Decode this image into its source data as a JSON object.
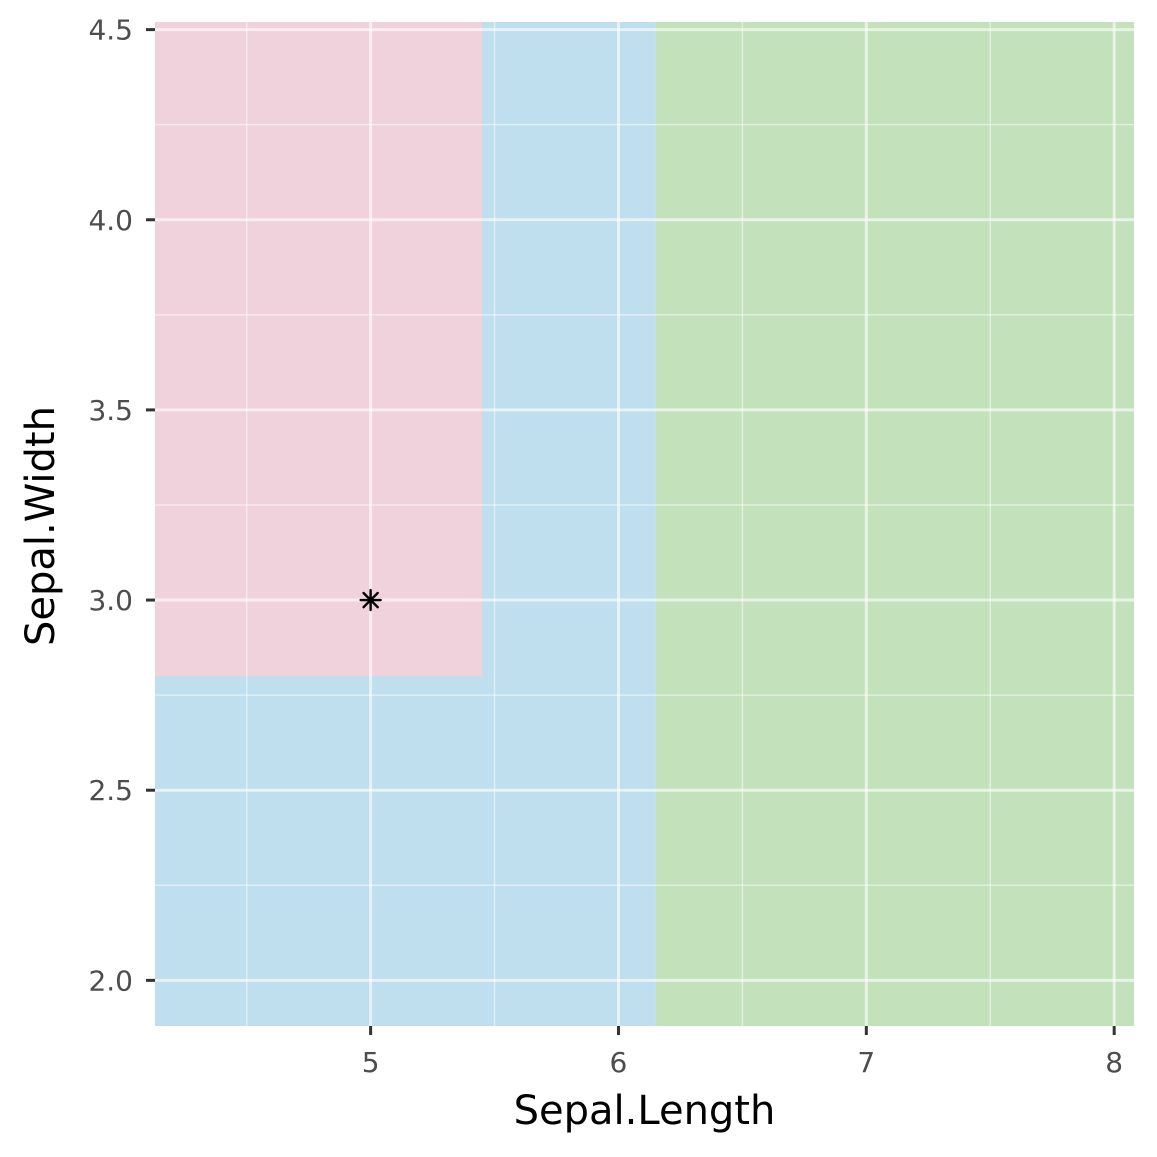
{
  "chart_data": {
    "type": "scatter",
    "subtype": "decision-region-plot",
    "xlabel": "Sepal.Length",
    "ylabel": "Sepal.Width",
    "xlim": [
      4.13,
      8.08
    ],
    "ylim": [
      1.88,
      4.52
    ],
    "x_ticks": [
      5,
      6,
      7,
      8
    ],
    "x_tick_labels": [
      "5",
      "6",
      "7",
      "8"
    ],
    "x_minor_ticks": [
      4.5,
      5.5,
      6.5,
      7.5
    ],
    "y_ticks": [
      2.0,
      2.5,
      3.0,
      3.5,
      4.0,
      4.5
    ],
    "y_tick_labels": [
      "2.0",
      "2.5",
      "3.0",
      "3.5",
      "4.0",
      "4.5"
    ],
    "y_minor_ticks": [
      2.25,
      2.75,
      3.25,
      3.75,
      4.25
    ],
    "grid": true,
    "legend": "none",
    "regions": [
      {
        "x0": 4.13,
        "x1": 6.15,
        "y0": 1.88,
        "y1": 4.52,
        "color": "#bfdeee"
      },
      {
        "x0": 4.13,
        "x1": 5.45,
        "y0": 2.8,
        "y1": 4.52,
        "color": "#efd2dc"
      },
      {
        "x0": 6.15,
        "x1": 8.08,
        "y0": 1.88,
        "y1": 4.52,
        "color": "#c3e1bb"
      }
    ],
    "points": [
      {
        "x": 5.0,
        "y": 3.0,
        "marker": "asterisk",
        "color": "#000000"
      }
    ]
  }
}
